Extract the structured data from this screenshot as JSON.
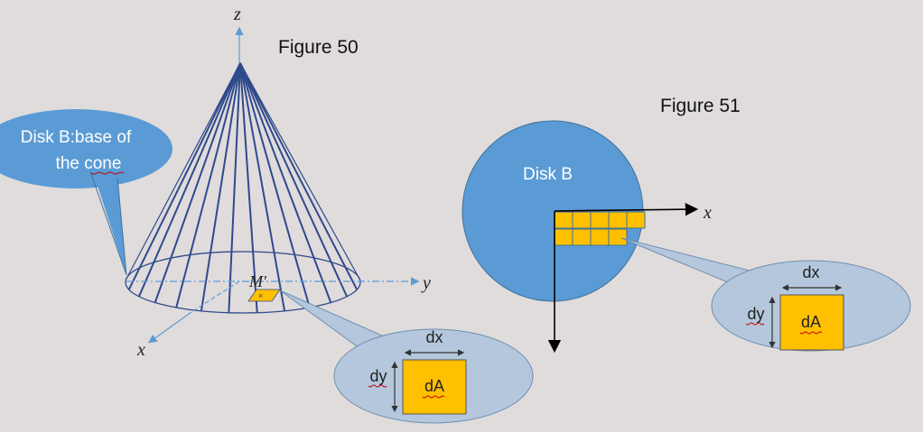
{
  "figure50": {
    "title": "Figure 50",
    "axis_z": "z",
    "axis_y": "y",
    "axis_x": "x",
    "callout_line1": "Disk B:base of",
    "callout_line2": "the cone",
    "point_label": "M′",
    "zoom": {
      "dx": "dx",
      "dy": "dy",
      "dA": "dA"
    }
  },
  "figure51": {
    "title": "Figure 51",
    "disk_label": "Disk B",
    "axis_x": "x",
    "zoom": {
      "dx": "dx",
      "dy": "dy",
      "dA": "dA"
    }
  },
  "colors": {
    "background": "#e0dcdc",
    "disk_blue": "#5b9bd5",
    "callout_fill": "#b4c7dc",
    "area_yellow": "#ffc000",
    "cone_line": "#2f4a8c",
    "axis_blue": "#5b9bd5"
  }
}
